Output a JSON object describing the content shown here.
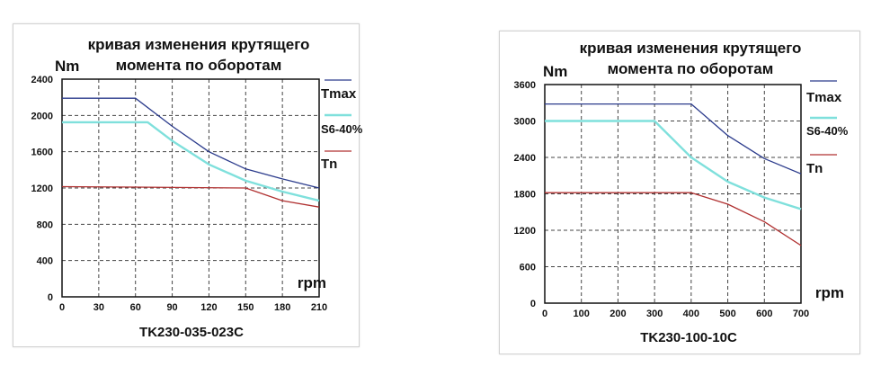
{
  "chart_data": [
    {
      "type": "line",
      "title_lines": [
        "кривая изменения крутящего",
        "момента по оборотам"
      ],
      "ylabel": "Nm",
      "xlabel": "rpm",
      "model": "TK230-035-023C",
      "xlim": [
        0,
        210
      ],
      "ylim": [
        0,
        2400
      ],
      "x_ticks": [
        "0",
        "30",
        "60",
        "90",
        "120",
        "150",
        "180",
        "210"
      ],
      "y_ticks": [
        "0",
        "400",
        "800",
        "1200",
        "1600",
        "2000",
        "2400"
      ],
      "grid": true,
      "legend_position": "right",
      "series": [
        {
          "name": "Tmax",
          "color": "#2b3b8c",
          "width": 1.3,
          "points": [
            [
              0,
              2190
            ],
            [
              60,
              2190
            ],
            [
              90,
              1880
            ],
            [
              120,
              1600
            ],
            [
              150,
              1410
            ],
            [
              180,
              1300
            ],
            [
              210,
              1200
            ]
          ]
        },
        {
          "name": "S6-40%",
          "color": "#7fe0dc",
          "width": 2.4,
          "points": [
            [
              0,
              1925
            ],
            [
              70,
              1925
            ],
            [
              90,
              1720
            ],
            [
              120,
              1460
            ],
            [
              150,
              1280
            ],
            [
              180,
              1160
            ],
            [
              210,
              1060
            ]
          ]
        },
        {
          "name": "Tn",
          "color": "#b03030",
          "width": 1.3,
          "points": [
            [
              0,
              1215
            ],
            [
              60,
              1210
            ],
            [
              150,
              1200
            ],
            [
              180,
              1060
            ],
            [
              210,
              990
            ]
          ]
        }
      ]
    },
    {
      "type": "line",
      "title_lines": [
        "кривая изменения крутящего",
        "момента по оборотам"
      ],
      "ylabel": "Nm",
      "xlabel": "rpm",
      "model": "TK230-100-10C",
      "xlim": [
        0,
        700
      ],
      "ylim": [
        0,
        3600
      ],
      "x_ticks": [
        "0",
        "100",
        "200",
        "300",
        "400",
        "500",
        "600",
        "700"
      ],
      "y_ticks": [
        "0",
        "600",
        "1200",
        "1800",
        "2400",
        "3000",
        "3600"
      ],
      "grid": true,
      "legend_position": "right",
      "series": [
        {
          "name": "Tmax",
          "color": "#2b3b8c",
          "width": 1.3,
          "points": [
            [
              0,
              3280
            ],
            [
              400,
              3280
            ],
            [
              500,
              2760
            ],
            [
              600,
              2380
            ],
            [
              700,
              2130
            ]
          ]
        },
        {
          "name": "S6-40%",
          "color": "#7fe0dc",
          "width": 2.4,
          "points": [
            [
              0,
              3000
            ],
            [
              300,
              3000
            ],
            [
              400,
              2400
            ],
            [
              500,
              2000
            ],
            [
              600,
              1740
            ],
            [
              700,
              1550
            ]
          ]
        },
        {
          "name": "Tn",
          "color": "#b03030",
          "width": 1.3,
          "points": [
            [
              0,
              1820
            ],
            [
              400,
              1820
            ],
            [
              500,
              1630
            ],
            [
              600,
              1340
            ],
            [
              700,
              950
            ]
          ]
        }
      ]
    }
  ]
}
